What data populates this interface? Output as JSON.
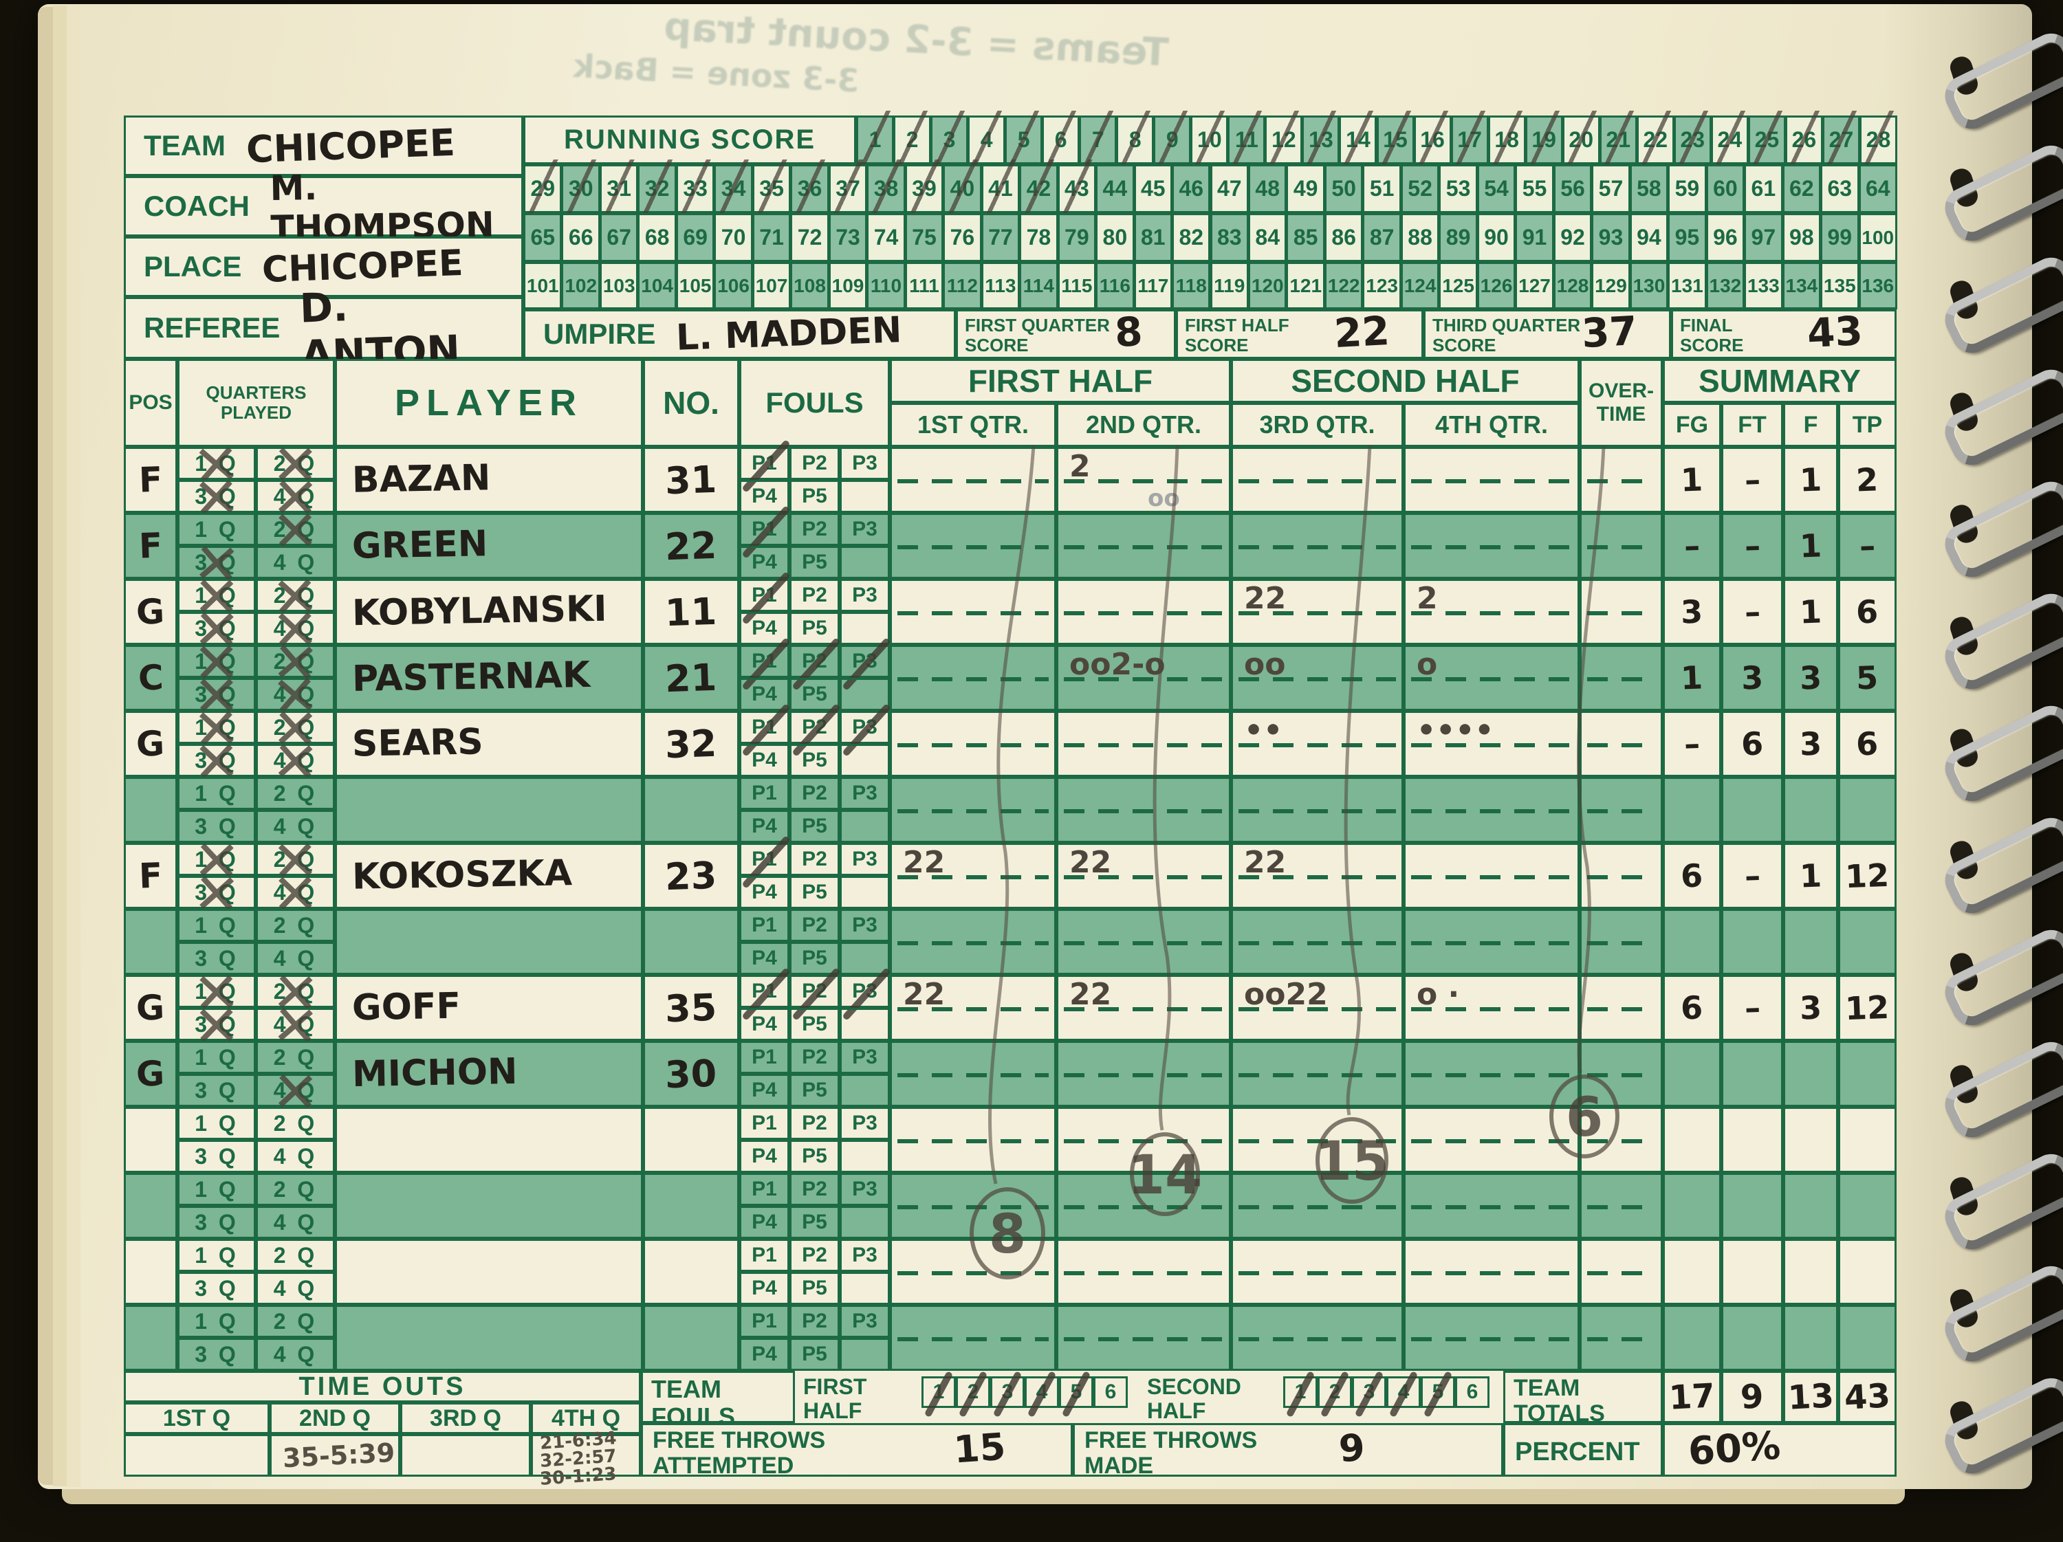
{
  "info": {
    "team_label": "TEAM",
    "team": "CHICOPEE",
    "coach_label": "COACH",
    "coach": "M. THOMPSON",
    "place_label": "PLACE",
    "place": "CHICOPEE",
    "referee_label": "REFEREE",
    "referee": "D. ANTON",
    "umpire_label": "UMPIRE",
    "umpire": "L. MADDEN"
  },
  "running_score": {
    "label": "RUNNING SCORE",
    "first": 1,
    "last": 136,
    "crossed_through": 43
  },
  "quarter_score_boxes": [
    {
      "line1": "FIRST QUARTER",
      "line2": "SCORE",
      "value": "8"
    },
    {
      "line1": "FIRST HALF",
      "line2": "SCORE",
      "value": "22"
    },
    {
      "line1": "THIRD QUARTER",
      "line2": "SCORE",
      "value": "37"
    },
    {
      "line1": "FINAL",
      "line2": "SCORE",
      "value": "43"
    }
  ],
  "table": {
    "header": {
      "pos": "POS",
      "quarters_line1": "QUARTERS",
      "quarters_line2": "PLAYED",
      "player": "PLAYER",
      "no": "NO.",
      "fouls": "FOULS",
      "first_half": "FIRST HALF",
      "second_half": "SECOND HALF",
      "overtime_line1": "OVER-",
      "overtime_line2": "TIME",
      "summary": "SUMMARY",
      "qtr_labels": [
        "1ST QTR.",
        "2ND QTR.",
        "3RD QTR.",
        "4TH QTR."
      ],
      "summary_cols": [
        "FG",
        "FT",
        "F",
        "TP"
      ],
      "foul_labels": [
        "P1",
        "P2",
        "P3",
        "P4",
        "P5"
      ],
      "quarter_cells": [
        "1 Q",
        "2 Q",
        "3 Q",
        "4 Q"
      ]
    },
    "players": [
      {
        "pos": "F",
        "name": "BAZAN",
        "no": "31",
        "quarters_played": [
          1,
          2,
          3,
          4
        ],
        "fouls": 1,
        "scoring": {
          "q2": "2",
          "q2_extra": "oo"
        },
        "summary": {
          "fg": "1",
          "ft": "–",
          "f": "1",
          "tp": "2"
        }
      },
      {
        "pos": "F",
        "name": "GREEN",
        "no": "22",
        "quarters_played": [
          2,
          3
        ],
        "fouls": 1,
        "scoring": {},
        "summary": {
          "fg": "–",
          "ft": "–",
          "f": "1",
          "tp": "–"
        }
      },
      {
        "pos": "G",
        "name": "KOBYLANSKI",
        "no": "11",
        "quarters_played": [
          1,
          2,
          3,
          4
        ],
        "fouls": 1,
        "scoring": {
          "q3": "22",
          "q4": "2"
        },
        "summary": {
          "fg": "3",
          "ft": "–",
          "f": "1",
          "tp": "6"
        }
      },
      {
        "pos": "C",
        "name": "PASTERNAK",
        "no": "21",
        "quarters_played": [
          1,
          2,
          3,
          4
        ],
        "fouls": 3,
        "scoring": {
          "q2": "oo2-o",
          "q3": "oo",
          "q4": "o"
        },
        "summary": {
          "fg": "1",
          "ft": "3",
          "f": "3",
          "tp": "5"
        }
      },
      {
        "pos": "G",
        "name": "SEARS",
        "no": "32",
        "quarters_played": [
          1,
          2,
          3,
          4
        ],
        "fouls": 3,
        "scoring": {
          "q3": "••",
          "q4": "••••"
        },
        "summary": {
          "fg": "–",
          "ft": "6",
          "f": "3",
          "tp": "6"
        }
      },
      {},
      {
        "pos": "F",
        "name": "KOKOSZKA",
        "no": "23",
        "quarters_played": [
          1,
          2,
          3,
          4
        ],
        "fouls": 1,
        "scoring": {
          "q1": "22",
          "q2": "22",
          "q3": "22"
        },
        "summary": {
          "fg": "6",
          "ft": "–",
          "f": "1",
          "tp": "12"
        }
      },
      {},
      {
        "pos": "G",
        "name": "GOFF",
        "no": "35",
        "quarters_played": [
          1,
          2,
          3,
          4
        ],
        "fouls": 3,
        "scoring": {
          "q1": "22",
          "q2": "22",
          "q3": "oo22",
          "q4": "o ·"
        },
        "summary": {
          "fg": "6",
          "ft": "–",
          "f": "3",
          "tp": "12"
        }
      },
      {
        "pos": "G",
        "name": "MICHON",
        "no": "30",
        "quarters_played": [
          4
        ],
        "fouls": 0,
        "scoring": {},
        "summary": {}
      },
      {},
      {},
      {},
      {}
    ],
    "quarter_totals": [
      {
        "quarter": "1ST",
        "value": "8"
      },
      {
        "quarter": "2ND",
        "value": "14"
      },
      {
        "quarter": "3RD",
        "value": "15"
      },
      {
        "quarter": "4TH",
        "value": "6"
      }
    ]
  },
  "footer": {
    "timeouts": {
      "title": "TIME OUTS",
      "labels": [
        "1ST Q",
        "2ND Q",
        "3RD Q",
        "4TH Q"
      ],
      "q2_value": "35-5:39",
      "q4_values": [
        "21-6:34",
        "32-2:57",
        "30-1:23"
      ]
    },
    "team_fouls": {
      "label_line1": "TEAM",
      "label_line2": "FOULS",
      "first_half_line1": "FIRST",
      "first_half_line2": "HALF",
      "second_half_line1": "SECOND",
      "second_half_line2": "HALF",
      "box_numbers": [
        "1",
        "2",
        "3",
        "4",
        "5",
        "6"
      ],
      "first_half_crossed": 5,
      "second_half_crossed": 5
    },
    "free_throws_attempted": {
      "line1": "FREE THROWS",
      "line2": "ATTEMPTED",
      "value": "15"
    },
    "free_throws_made": {
      "line1": "FREE THROWS",
      "line2": "MADE",
      "value": "9"
    },
    "team_totals": {
      "line1": "TEAM",
      "line2": "TOTALS",
      "values": [
        "17",
        "9",
        "13",
        "43"
      ]
    },
    "percent": {
      "label": "PERCENT",
      "value": "60%"
    }
  },
  "ghost_writing": [
    "Teams = 3-2   count trap",
    "3-3 zone = Back"
  ]
}
